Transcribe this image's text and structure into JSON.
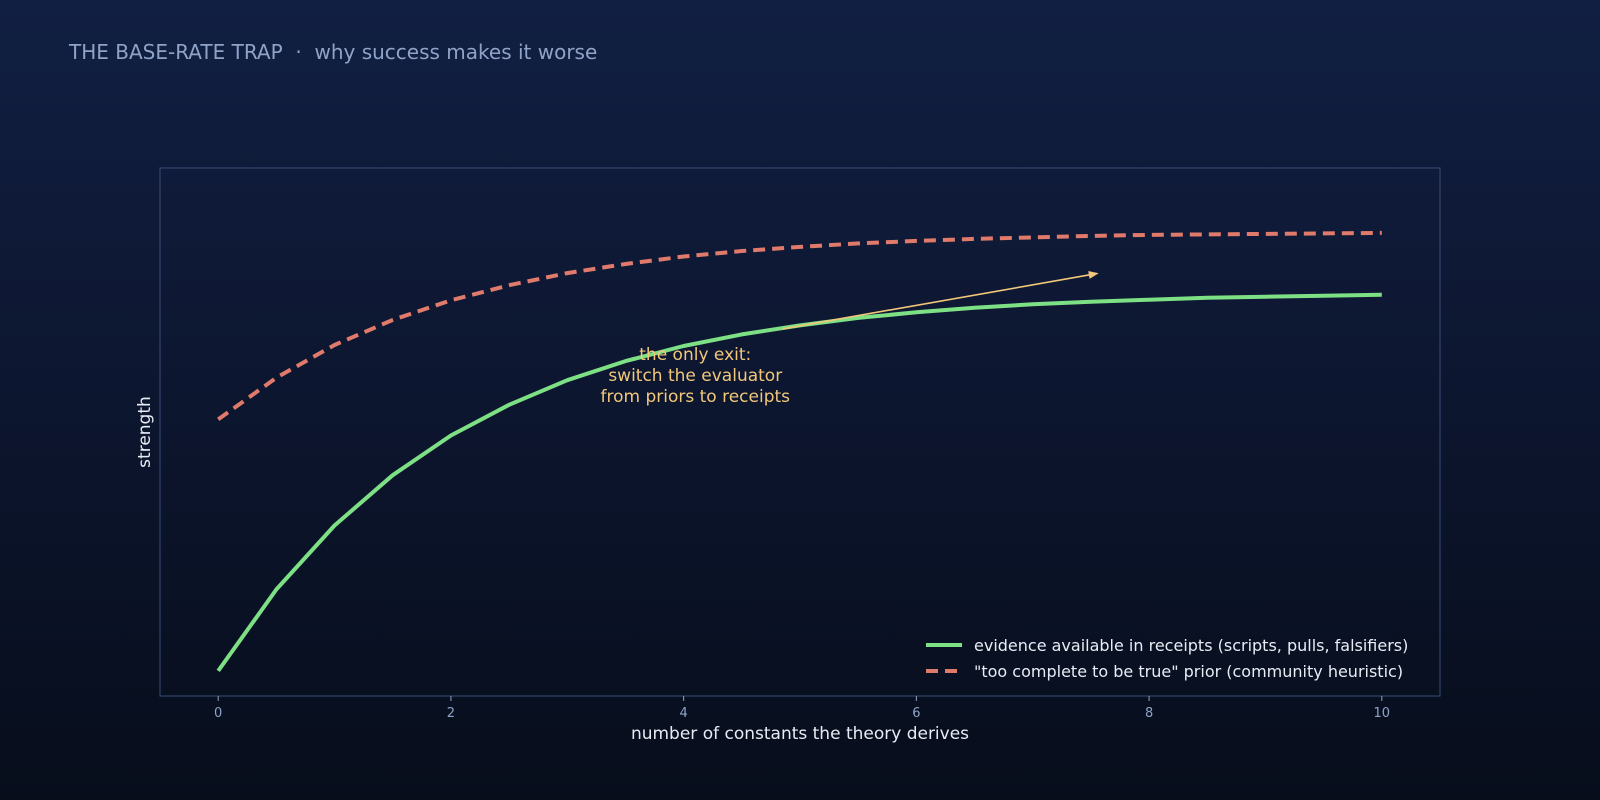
{
  "header": {
    "title": "THE BASE-RATE TRAP",
    "separator": "·",
    "subtitle": "why success makes it worse"
  },
  "colors": {
    "evidence": "#7ee085",
    "prior": "#e07a6b",
    "annotation": "#f2c77a",
    "text": "#e8ecf5",
    "tick": "#8fa3c8",
    "frame": "#3a4d75"
  },
  "chart_data": {
    "type": "line",
    "title": "THE BASE-RATE TRAP · why success makes it worse",
    "xlabel": "number of constants the theory derives",
    "ylabel": "strength",
    "xlim": [
      -0.5,
      10.5
    ],
    "ylim": [
      0,
      1.05
    ],
    "xticks": [
      0,
      2,
      4,
      6,
      8,
      10
    ],
    "yticks_shown": false,
    "grid": false,
    "legend_position": "lower-right",
    "series": [
      {
        "name": "evidence available in receipts (scripts, pulls, falsifiers)",
        "style": "solid",
        "color": "#7ee085",
        "x": [
          0,
          0.5,
          1,
          1.5,
          2,
          2.5,
          3,
          3.5,
          4,
          4.5,
          5,
          5.5,
          6,
          6.5,
          7,
          7.5,
          8,
          8.5,
          9,
          9.5,
          10
        ],
        "y": [
          0.05,
          0.212,
          0.339,
          0.439,
          0.518,
          0.579,
          0.628,
          0.666,
          0.696,
          0.719,
          0.737,
          0.752,
          0.763,
          0.772,
          0.779,
          0.784,
          0.788,
          0.792,
          0.794,
          0.796,
          0.798
        ]
      },
      {
        "name": "\"too complete to be true\" prior (community heuristic)",
        "style": "dashed",
        "color": "#e07a6b",
        "x": [
          0,
          0.5,
          1,
          1.5,
          2,
          2.5,
          3,
          3.5,
          4,
          4.5,
          5,
          5.5,
          6,
          6.5,
          7,
          7.5,
          8,
          8.5,
          9,
          9.5,
          10
        ],
        "y": [
          0.55,
          0.633,
          0.698,
          0.748,
          0.787,
          0.817,
          0.841,
          0.859,
          0.874,
          0.885,
          0.893,
          0.9,
          0.905,
          0.909,
          0.912,
          0.915,
          0.917,
          0.918,
          0.919,
          0.92,
          0.921
        ]
      }
    ],
    "annotations": [
      {
        "lines": [
          "the only exit:",
          "switch the evaluator",
          "from priors to receipts"
        ],
        "text_at": [
          4.1,
          0.62
        ],
        "arrow_from": [
          4.85,
          0.73
        ],
        "arrow_to": [
          7.55,
          0.84
        ],
        "color": "#f2c77a"
      }
    ]
  }
}
